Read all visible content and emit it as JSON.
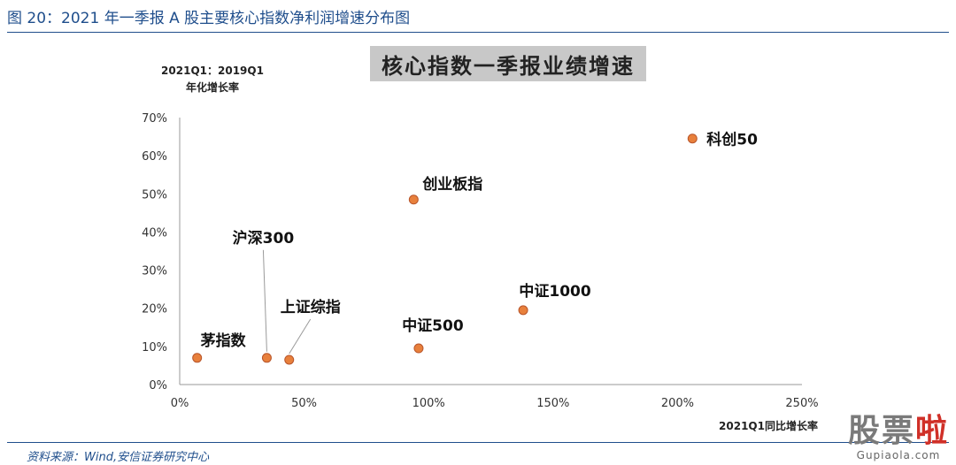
{
  "figure_title": "图 20：2021 年一季报 A 股主要核心指数净利润增速分布图",
  "source_note": "资料来源：Wind,安信证券研究中心",
  "watermark": {
    "text_gray": "股票",
    "text_red": "啦",
    "url": "Gupiaola.com"
  },
  "colors": {
    "title_blue": "#1f4e8c",
    "marker_fill": "#e8803c",
    "marker_stroke": "#b8552a",
    "axis": "#7f7f7f"
  },
  "chart_data": {
    "type": "scatter",
    "title": "核心指数一季报业绩增速",
    "ylabel_line1": "2021Q1：2019Q1",
    "ylabel_line2": "年化增长率",
    "xlabel": "2021Q1同比增长率",
    "xlim": [
      0,
      250
    ],
    "ylim": [
      0,
      70
    ],
    "xticks": [
      0,
      50,
      100,
      150,
      200,
      250
    ],
    "yticks": [
      0,
      10,
      20,
      30,
      40,
      50,
      60,
      70
    ],
    "xtick_labels": [
      "0%",
      "50%",
      "100%",
      "150%",
      "200%",
      "250%"
    ],
    "ytick_labels": [
      "0%",
      "10%",
      "20%",
      "30%",
      "40%",
      "50%",
      "60%",
      "70%"
    ],
    "grid": false,
    "legend": "none",
    "points": [
      {
        "name": "茅指数",
        "x": 7,
        "y": 7
      },
      {
        "name": "沪深300",
        "x": 35,
        "y": 7
      },
      {
        "name": "上证综指",
        "x": 44,
        "y": 6.5
      },
      {
        "name": "中证500",
        "x": 96,
        "y": 9.5
      },
      {
        "name": "创业板指",
        "x": 94,
        "y": 48.5
      },
      {
        "name": "中证1000",
        "x": 138,
        "y": 19.5
      },
      {
        "name": "科创50",
        "x": 206,
        "y": 64.5
      }
    ]
  }
}
